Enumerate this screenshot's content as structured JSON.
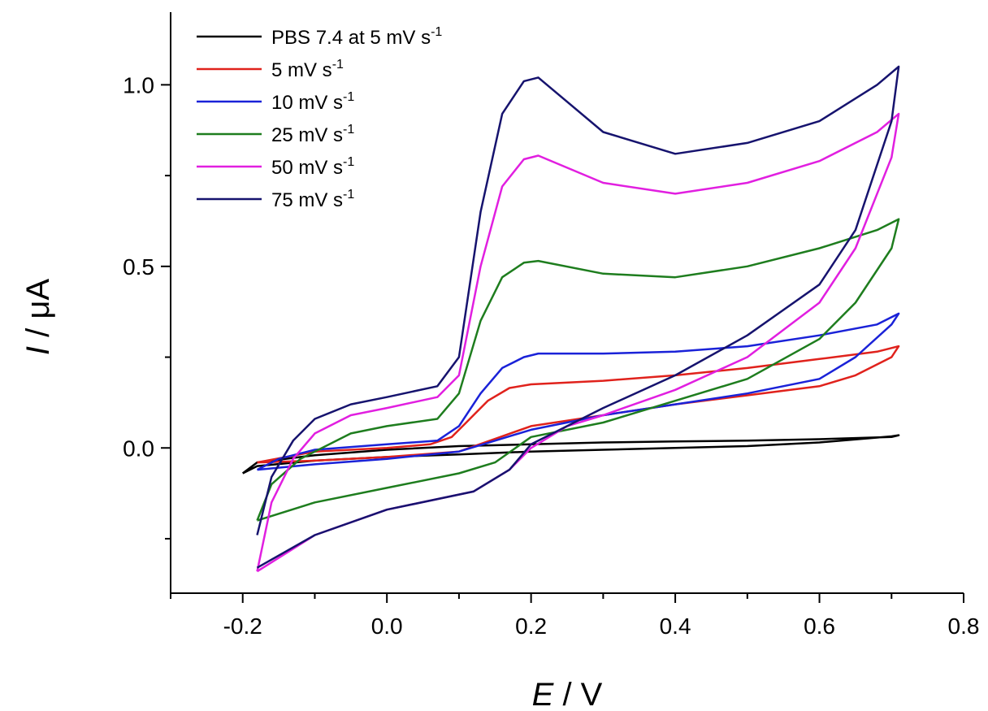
{
  "chart_data": {
    "type": "line",
    "xlabel": {
      "var": "E",
      "unit": " / V"
    },
    "ylabel": {
      "var": "I",
      "unit": " / μA"
    },
    "xlim": [
      -0.3,
      0.8
    ],
    "ylim": [
      -0.4,
      1.2
    ],
    "xticks": [
      "-0.2",
      "0.0",
      "0.2",
      "0.4",
      "0.6",
      "0.8"
    ],
    "yticks": [
      "0.0",
      "0.5",
      "1.0"
    ],
    "grid": false,
    "legend_position": "top-left",
    "series": [
      {
        "name": "PBS 7.4 at 5 mV s",
        "sup": "-1",
        "color": "#000000",
        "points": [
          [
            -0.2,
            -0.07
          ],
          [
            -0.18,
            -0.04
          ],
          [
            -0.1,
            -0.02
          ],
          [
            0.0,
            -0.005
          ],
          [
            0.1,
            0.005
          ],
          [
            0.2,
            0.01
          ],
          [
            0.3,
            0.015
          ],
          [
            0.4,
            0.018
          ],
          [
            0.5,
            0.02
          ],
          [
            0.6,
            0.024
          ],
          [
            0.7,
            0.03
          ],
          [
            0.71,
            0.035
          ],
          [
            0.7,
            0.032
          ],
          [
            0.6,
            0.015
          ],
          [
            0.5,
            0.005
          ],
          [
            0.4,
            0.0
          ],
          [
            0.3,
            -0.005
          ],
          [
            0.2,
            -0.01
          ],
          [
            0.1,
            -0.018
          ],
          [
            0.0,
            -0.025
          ],
          [
            -0.1,
            -0.035
          ],
          [
            -0.18,
            -0.05
          ],
          [
            -0.2,
            -0.07
          ]
        ]
      },
      {
        "name": "5 mV s",
        "sup": "-1",
        "color": "#e0221c",
        "points": [
          [
            -0.18,
            -0.04
          ],
          [
            -0.1,
            -0.01
          ],
          [
            0.0,
            0.0
          ],
          [
            0.06,
            0.01
          ],
          [
            0.09,
            0.03
          ],
          [
            0.11,
            0.07
          ],
          [
            0.14,
            0.13
          ],
          [
            0.17,
            0.165
          ],
          [
            0.2,
            0.175
          ],
          [
            0.3,
            0.185
          ],
          [
            0.4,
            0.2
          ],
          [
            0.5,
            0.22
          ],
          [
            0.6,
            0.245
          ],
          [
            0.68,
            0.265
          ],
          [
            0.71,
            0.28
          ],
          [
            0.7,
            0.25
          ],
          [
            0.65,
            0.2
          ],
          [
            0.6,
            0.17
          ],
          [
            0.5,
            0.145
          ],
          [
            0.4,
            0.12
          ],
          [
            0.3,
            0.09
          ],
          [
            0.2,
            0.06
          ],
          [
            0.15,
            0.025
          ],
          [
            0.1,
            -0.01
          ],
          [
            0.0,
            -0.025
          ],
          [
            -0.1,
            -0.035
          ],
          [
            -0.18,
            -0.04
          ]
        ]
      },
      {
        "name": "10 mV s",
        "sup": "-1",
        "color": "#1a22d8",
        "points": [
          [
            -0.18,
            -0.06
          ],
          [
            -0.15,
            -0.03
          ],
          [
            -0.1,
            -0.005
          ],
          [
            0.0,
            0.01
          ],
          [
            0.07,
            0.02
          ],
          [
            0.1,
            0.06
          ],
          [
            0.13,
            0.15
          ],
          [
            0.16,
            0.22
          ],
          [
            0.19,
            0.25
          ],
          [
            0.21,
            0.26
          ],
          [
            0.3,
            0.26
          ],
          [
            0.4,
            0.265
          ],
          [
            0.5,
            0.28
          ],
          [
            0.6,
            0.31
          ],
          [
            0.68,
            0.34
          ],
          [
            0.71,
            0.37
          ],
          [
            0.7,
            0.34
          ],
          [
            0.65,
            0.25
          ],
          [
            0.6,
            0.19
          ],
          [
            0.5,
            0.15
          ],
          [
            0.4,
            0.12
          ],
          [
            0.3,
            0.09
          ],
          [
            0.2,
            0.05
          ],
          [
            0.15,
            0.02
          ],
          [
            0.1,
            -0.01
          ],
          [
            0.0,
            -0.03
          ],
          [
            -0.1,
            -0.045
          ],
          [
            -0.18,
            -0.06
          ]
        ]
      },
      {
        "name": "25 mV s",
        "sup": "-1",
        "color": "#1e7d1e",
        "points": [
          [
            -0.18,
            -0.2
          ],
          [
            -0.16,
            -0.1
          ],
          [
            -0.12,
            -0.03
          ],
          [
            -0.05,
            0.04
          ],
          [
            0.0,
            0.06
          ],
          [
            0.07,
            0.08
          ],
          [
            0.1,
            0.15
          ],
          [
            0.13,
            0.35
          ],
          [
            0.16,
            0.47
          ],
          [
            0.19,
            0.51
          ],
          [
            0.21,
            0.515
          ],
          [
            0.3,
            0.48
          ],
          [
            0.4,
            0.47
          ],
          [
            0.5,
            0.5
          ],
          [
            0.6,
            0.55
          ],
          [
            0.68,
            0.6
          ],
          [
            0.71,
            0.63
          ],
          [
            0.7,
            0.55
          ],
          [
            0.65,
            0.4
          ],
          [
            0.6,
            0.3
          ],
          [
            0.5,
            0.19
          ],
          [
            0.4,
            0.13
          ],
          [
            0.3,
            0.07
          ],
          [
            0.2,
            0.03
          ],
          [
            0.15,
            -0.04
          ],
          [
            0.1,
            -0.07
          ],
          [
            0.0,
            -0.11
          ],
          [
            -0.1,
            -0.15
          ],
          [
            -0.18,
            -0.2
          ]
        ]
      },
      {
        "name": "50 mV s",
        "sup": "-1",
        "color": "#e11fe0",
        "points": [
          [
            -0.18,
            -0.34
          ],
          [
            -0.16,
            -0.15
          ],
          [
            -0.13,
            -0.03
          ],
          [
            -0.1,
            0.04
          ],
          [
            -0.05,
            0.09
          ],
          [
            0.0,
            0.11
          ],
          [
            0.07,
            0.14
          ],
          [
            0.1,
            0.2
          ],
          [
            0.13,
            0.5
          ],
          [
            0.16,
            0.72
          ],
          [
            0.19,
            0.795
          ],
          [
            0.21,
            0.805
          ],
          [
            0.3,
            0.73
          ],
          [
            0.4,
            0.7
          ],
          [
            0.5,
            0.73
          ],
          [
            0.6,
            0.79
          ],
          [
            0.68,
            0.87
          ],
          [
            0.71,
            0.92
          ],
          [
            0.7,
            0.8
          ],
          [
            0.65,
            0.55
          ],
          [
            0.6,
            0.4
          ],
          [
            0.5,
            0.25
          ],
          [
            0.4,
            0.16
          ],
          [
            0.3,
            0.09
          ],
          [
            0.25,
            0.06
          ],
          [
            0.2,
            0.0
          ],
          [
            0.17,
            -0.06
          ],
          [
            0.12,
            -0.12
          ],
          [
            0.0,
            -0.17
          ],
          [
            -0.1,
            -0.24
          ],
          [
            -0.18,
            -0.34
          ]
        ]
      },
      {
        "name": "75 mV s",
        "sup": "-1",
        "color": "#16136e",
        "points": [
          [
            -0.18,
            -0.24
          ],
          [
            -0.16,
            -0.08
          ],
          [
            -0.13,
            0.02
          ],
          [
            -0.1,
            0.08
          ],
          [
            -0.05,
            0.12
          ],
          [
            0.0,
            0.14
          ],
          [
            0.07,
            0.17
          ],
          [
            0.1,
            0.25
          ],
          [
            0.13,
            0.65
          ],
          [
            0.16,
            0.92
          ],
          [
            0.19,
            1.01
          ],
          [
            0.21,
            1.02
          ],
          [
            0.3,
            0.87
          ],
          [
            0.4,
            0.81
          ],
          [
            0.5,
            0.84
          ],
          [
            0.6,
            0.9
          ],
          [
            0.68,
            1.0
          ],
          [
            0.71,
            1.05
          ],
          [
            0.7,
            0.9
          ],
          [
            0.65,
            0.6
          ],
          [
            0.6,
            0.45
          ],
          [
            0.5,
            0.31
          ],
          [
            0.4,
            0.2
          ],
          [
            0.3,
            0.11
          ],
          [
            0.25,
            0.06
          ],
          [
            0.2,
            0.01
          ],
          [
            0.17,
            -0.06
          ],
          [
            0.12,
            -0.12
          ],
          [
            0.0,
            -0.17
          ],
          [
            -0.1,
            -0.24
          ],
          [
            -0.18,
            -0.33
          ]
        ]
      }
    ]
  }
}
